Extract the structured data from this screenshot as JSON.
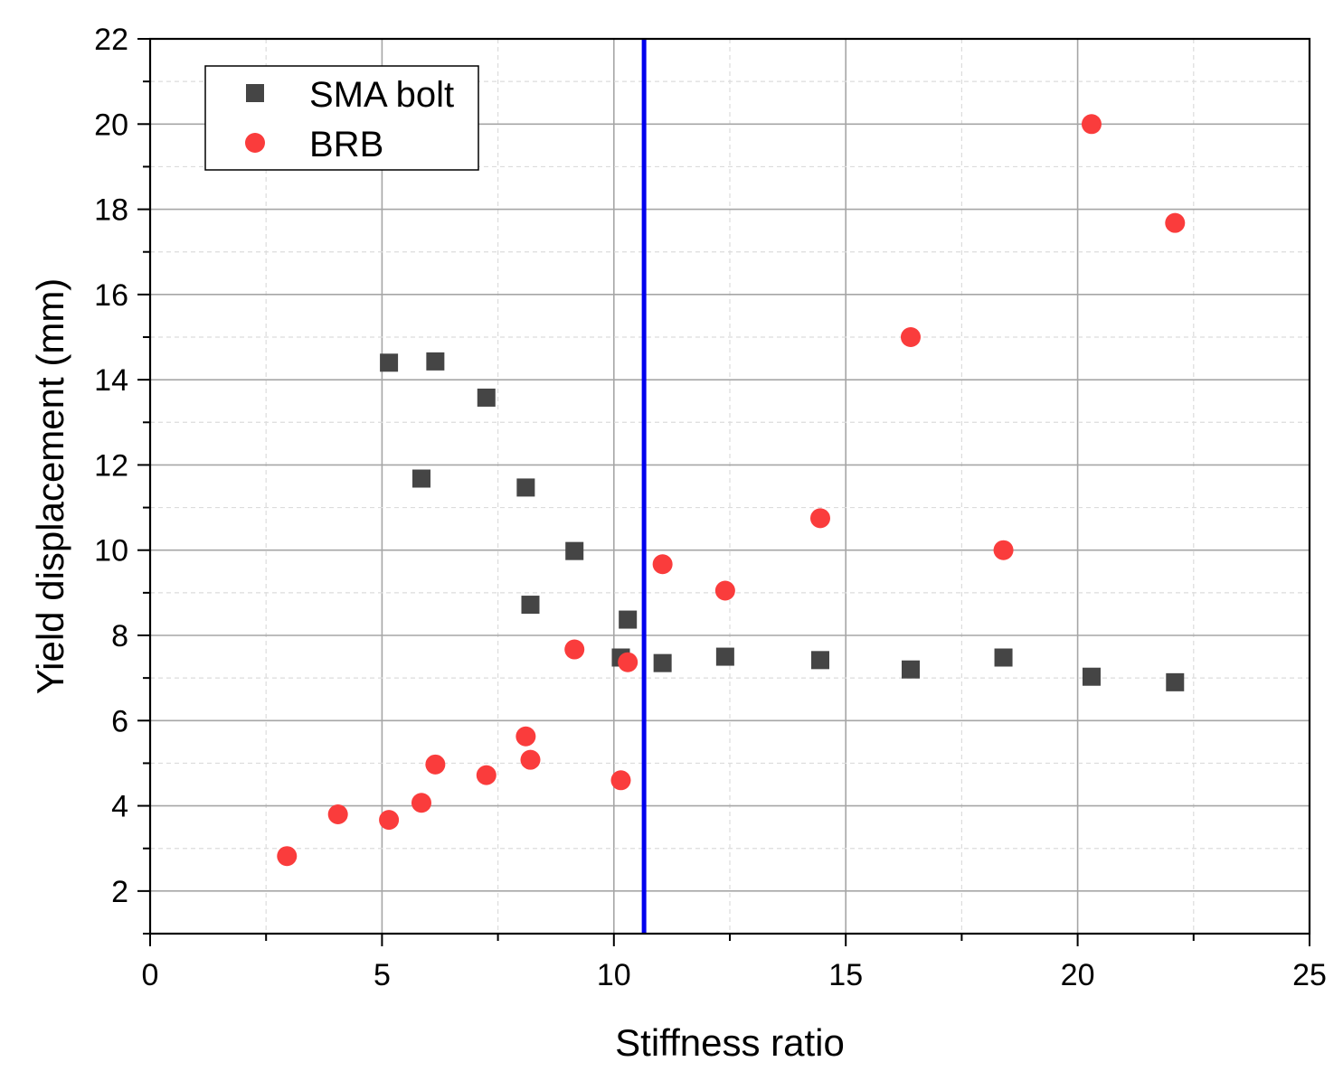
{
  "chart_data": {
    "type": "scatter",
    "title": "",
    "xlabel": "Stiffness ratio",
    "ylabel": "Yield displacement (mm)",
    "xlim": [
      0,
      25
    ],
    "ylim": [
      1,
      22
    ],
    "x_ticks": [
      0,
      5,
      10,
      15,
      20,
      25
    ],
    "x_tick_labels": [
      "0",
      "5",
      "10",
      "15",
      "20",
      "25"
    ],
    "y_ticks": [
      2,
      4,
      6,
      8,
      10,
      12,
      14,
      16,
      18,
      20,
      22
    ],
    "y_tick_labels": [
      "2",
      "4",
      "6",
      "8",
      "10",
      "12",
      "14",
      "16",
      "18",
      "20",
      "22"
    ],
    "grid": true,
    "legend_position": "top-left",
    "vertical_line": {
      "x": 10.65,
      "color": "#0000ee"
    },
    "series": [
      {
        "name": "SMA bolt",
        "marker": "square",
        "color": "#454545",
        "points": [
          {
            "x": 5.15,
            "y": 14.4
          },
          {
            "x": 6.15,
            "y": 14.43
          },
          {
            "x": 7.25,
            "y": 13.58
          },
          {
            "x": 5.85,
            "y": 11.68
          },
          {
            "x": 8.1,
            "y": 11.47
          },
          {
            "x": 9.15,
            "y": 9.98
          },
          {
            "x": 8.2,
            "y": 8.72
          },
          {
            "x": 10.3,
            "y": 8.37
          },
          {
            "x": 10.15,
            "y": 7.48
          },
          {
            "x": 11.05,
            "y": 7.35
          },
          {
            "x": 12.4,
            "y": 7.5
          },
          {
            "x": 14.45,
            "y": 7.42
          },
          {
            "x": 16.4,
            "y": 7.2
          },
          {
            "x": 18.4,
            "y": 7.48
          },
          {
            "x": 20.3,
            "y": 7.03
          },
          {
            "x": 22.1,
            "y": 6.9
          }
        ]
      },
      {
        "name": "BRB",
        "marker": "circle",
        "color": "#fa3c3c",
        "points": [
          {
            "x": 2.95,
            "y": 2.82
          },
          {
            "x": 4.05,
            "y": 3.8
          },
          {
            "x": 5.15,
            "y": 3.67
          },
          {
            "x": 5.85,
            "y": 4.07
          },
          {
            "x": 6.15,
            "y": 4.97
          },
          {
            "x": 7.25,
            "y": 4.72
          },
          {
            "x": 8.1,
            "y": 5.63
          },
          {
            "x": 8.2,
            "y": 5.08
          },
          {
            "x": 9.15,
            "y": 7.67
          },
          {
            "x": 10.15,
            "y": 4.6
          },
          {
            "x": 10.3,
            "y": 7.37
          },
          {
            "x": 11.05,
            "y": 9.67
          },
          {
            "x": 12.4,
            "y": 9.05
          },
          {
            "x": 14.45,
            "y": 10.75
          },
          {
            "x": 16.4,
            "y": 15.0
          },
          {
            "x": 18.4,
            "y": 10.0
          },
          {
            "x": 20.3,
            "y": 20.0
          },
          {
            "x": 22.1,
            "y": 17.68
          }
        ]
      }
    ]
  }
}
